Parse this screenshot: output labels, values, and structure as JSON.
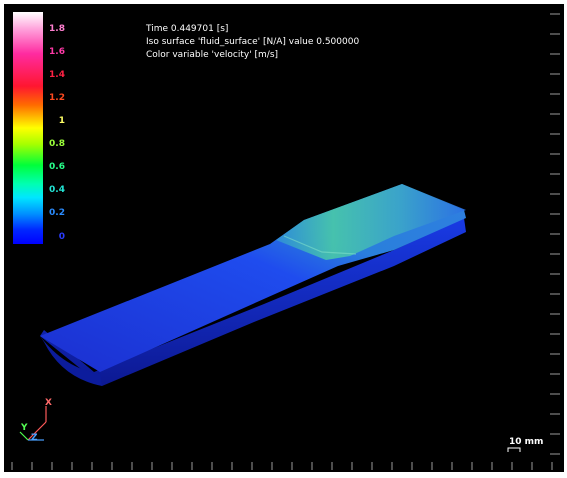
{
  "info": {
    "time": "Time 0.449701 [s]",
    "iso": "Iso surface 'fluid_surface' [N/A] value 0.500000",
    "color_variable": "Color variable 'velocity' [m/s]"
  },
  "colorbar": {
    "labels": [
      "1.8",
      "1.6",
      "1.4",
      "1.2",
      "1",
      "0.8",
      "0.6",
      "0.4",
      "0.2",
      "0"
    ],
    "label_colors": [
      "#ff7fd0",
      "#ff3aa8",
      "#ff2244",
      "#ff4a20",
      "#ffff66",
      "#9bff3a",
      "#27ff8a",
      "#22e6d6",
      "#2a8cff",
      "#2a3cff"
    ]
  },
  "scale": {
    "label": "10 mm"
  },
  "axes": {
    "x": "X",
    "y": "Y",
    "z": "Z"
  },
  "colors": {
    "background": "#000000",
    "fluid_low": "#1a3df0",
    "fluid_high": "#49c79b"
  }
}
